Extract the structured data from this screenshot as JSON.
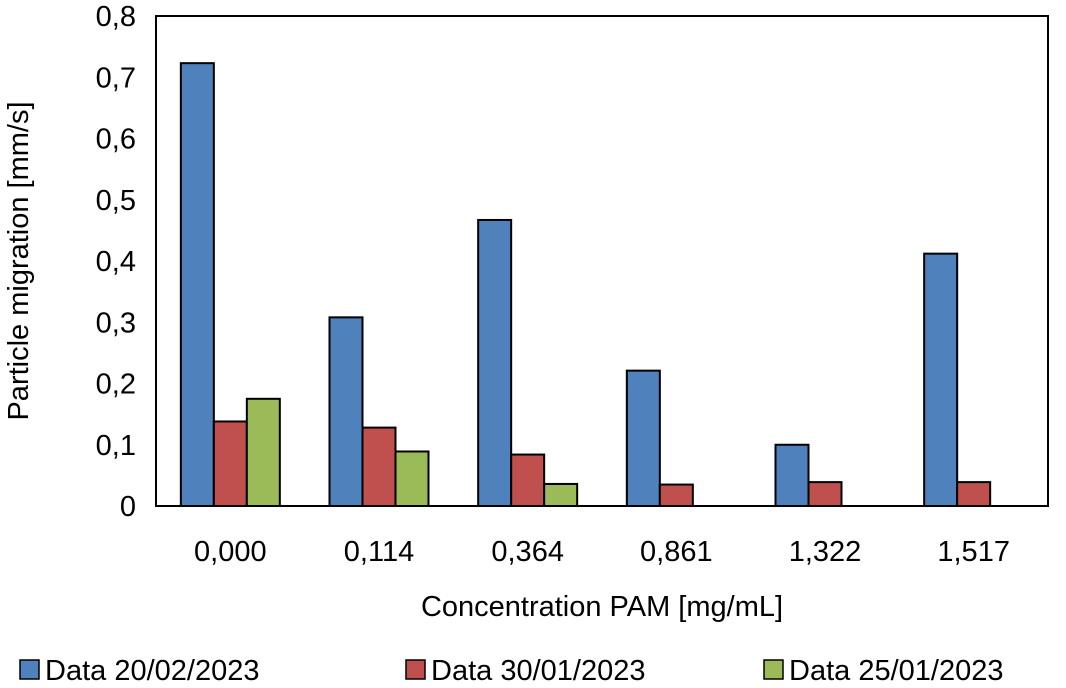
{
  "chart_data": {
    "type": "bar",
    "title": "",
    "xlabel": "Concentration PAM [mg/mL]",
    "ylabel": "Particle migration [mm/s]",
    "ylim": [
      0,
      0.8
    ],
    "yticks": [
      "0",
      "0,1",
      "0,2",
      "0,3",
      "0,4",
      "0,5",
      "0,6",
      "0,7",
      "0,8"
    ],
    "categories": [
      "0,000",
      "0,114",
      "0,364",
      "0,861",
      "1,322",
      "1,517"
    ],
    "series": [
      {
        "name": "Data 20/02/2023",
        "color": "#4f81bd",
        "values": [
          0.723,
          0.308,
          0.467,
          0.221,
          0.1,
          0.412
        ]
      },
      {
        "name": "Data 30/01/2023",
        "color": "#c0504d",
        "values": [
          0.138,
          0.128,
          0.084,
          0.035,
          0.039,
          0.039
        ]
      },
      {
        "name": "Data 25/01/2023",
        "color": "#9bbb59",
        "values": [
          0.175,
          0.089,
          0.036,
          null,
          null,
          null
        ]
      }
    ],
    "grid": false,
    "legend_position": "bottom"
  }
}
